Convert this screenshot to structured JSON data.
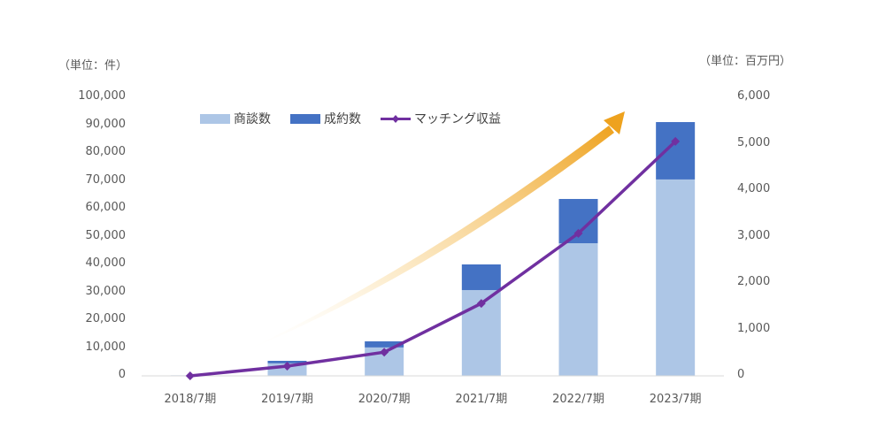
{
  "chart_data": {
    "type": "bar",
    "subtype": "stacked bar + line (dual axis)",
    "categories": [
      "2018/7期",
      "2019/7期",
      "2020/7期",
      "2021/7期",
      "2022/7期",
      "2023/7期"
    ],
    "series": [
      {
        "name": "商談数",
        "type": "bar",
        "axis": "left",
        "color": "#adc6e6",
        "values": [
          200,
          4500,
          10200,
          30800,
          47600,
          70500
        ]
      },
      {
        "name": "成約数",
        "type": "bar",
        "axis": "left",
        "color": "#4472c4",
        "values": [
          0,
          900,
          2200,
          9200,
          15900,
          20600
        ]
      },
      {
        "name": "マッチング収益",
        "type": "line",
        "axis": "right",
        "color": "#7030a0",
        "marker": "diamond",
        "values": [
          0,
          210,
          510,
          1560,
          3070,
          5050
        ]
      }
    ],
    "left_axis": {
      "unit_label": "（単位：件）",
      "ylim": [
        0,
        100000
      ],
      "ticks": [
        "0",
        "10,000",
        "20,000",
        "30,000",
        "40,000",
        "50,000",
        "60,000",
        "70,000",
        "80,000",
        "90,000",
        "100,000"
      ]
    },
    "right_axis": {
      "unit_label": "（単位：百万円）",
      "ylim": [
        0,
        6000
      ],
      "ticks": [
        "0",
        "1,000",
        "2,000",
        "3,000",
        "4,000",
        "5,000",
        "6,000"
      ]
    },
    "title": "",
    "xlabel": "",
    "grid": false,
    "legend_position": "top",
    "annotation": "orange growth arrow (gradient) rising to the upper right"
  },
  "legend": {
    "items": [
      "商談数",
      "成約数",
      "マッチング収益"
    ]
  },
  "colors": {
    "light_bar": "#adc6e6",
    "dark_bar": "#4472c4",
    "line": "#7030a0",
    "arrow": "#f0a020",
    "axis": "#d9d9d9"
  }
}
